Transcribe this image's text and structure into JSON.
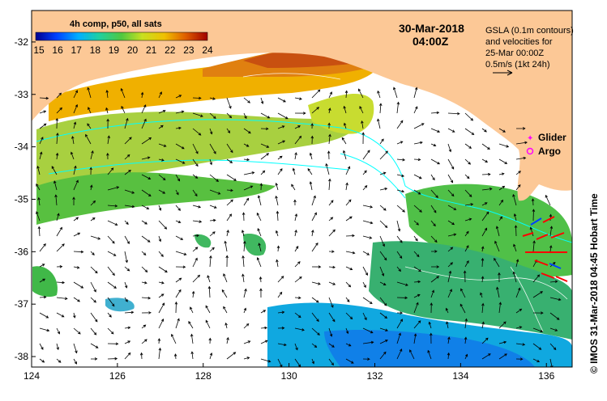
{
  "colorbar": {
    "title": "4h comp, p50, all sats",
    "labels": [
      "15",
      "16",
      "17",
      "18",
      "19",
      "20",
      "21",
      "22",
      "23",
      "24"
    ],
    "min": 15,
    "max": 24
  },
  "timestamp": {
    "date": "30-Mar-2018",
    "time": "04:00Z"
  },
  "gsla_note": {
    "line1": "GSLA (0.1m contours)",
    "line2": "and velocities for",
    "line3": "25-Mar 00:00Z",
    "line4": "0.5m/s (1kt 24h)"
  },
  "legend": {
    "glider": "Glider",
    "argo": "Argo",
    "glider_color": "#ff00ff",
    "argo_color": "#ff00ff"
  },
  "side_credit": "© IMOS 31-Mar-2018 04:45 Hobart Time",
  "axes": {
    "x_ticks": [
      "124",
      "126",
      "128",
      "130",
      "132",
      "134",
      "136"
    ],
    "y_ticks": [
      "-32",
      "-33",
      "-34",
      "-35",
      "-36",
      "-37",
      "-38"
    ],
    "lon_range": [
      124,
      136.6
    ],
    "lat_range": [
      -38.2,
      -31.4
    ]
  },
  "colors": {
    "land": "#fcc896",
    "ocean": "#ffffff",
    "ssh_contour": "#00ffff",
    "velocity_arrow": "#000000"
  }
}
